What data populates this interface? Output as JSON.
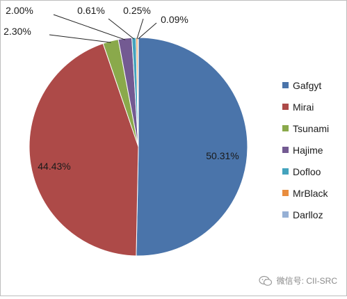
{
  "chart_data": {
    "type": "pie",
    "title": "",
    "series": [
      {
        "name": "Gafgyt",
        "value": 50.31,
        "label": "50.31%",
        "color": "#4A74AA"
      },
      {
        "name": "Mirai",
        "value": 44.43,
        "label": "44.43%",
        "color": "#AD4A48"
      },
      {
        "name": "Tsunami",
        "value": 2.3,
        "label": "2.30%",
        "color": "#8AA94B"
      },
      {
        "name": "Hajime",
        "value": 2.0,
        "label": "2.00%",
        "color": "#735A92"
      },
      {
        "name": "Dofloo",
        "value": 0.61,
        "label": "0.61%",
        "color": "#44A3BD"
      },
      {
        "name": "MrBlack",
        "value": 0.25,
        "label": "0.25%",
        "color": "#E98D3E"
      },
      {
        "name": "Darlloz",
        "value": 0.09,
        "label": "0.09%",
        "color": "#96B0D5"
      }
    ],
    "start_angle": "12 o'clock",
    "direction": "clockwise",
    "legend": "right"
  },
  "watermark": {
    "icon": "wechat-icon",
    "text": "微信号: CII-SRC"
  }
}
